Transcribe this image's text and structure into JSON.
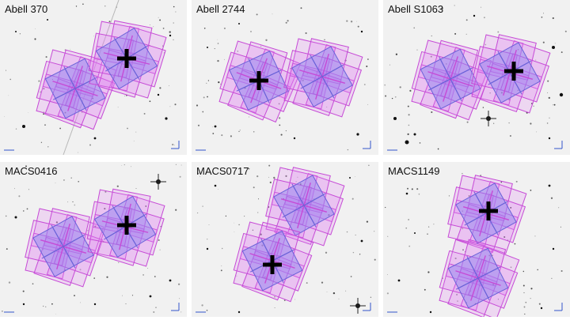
{
  "panels": [
    {
      "title": "Abell 370"
    },
    {
      "title": "Abell 2744"
    },
    {
      "title": "Abell S1063"
    },
    {
      "title": "MACS0416"
    },
    {
      "title": "MACS0717"
    },
    {
      "title": "MACS1149"
    }
  ],
  "colors": {
    "sky": "#f1f1f1",
    "footprint_fill": "#e07af0",
    "footprint_stroke": "#c64ad6",
    "inner_fill": "#8a8af0",
    "inner_stroke": "#6a62d8",
    "cross": "#000000",
    "star": "#111111"
  },
  "icons": [
    "black-cross-marker-icon",
    "compass-arrows-icon",
    "scale-bar-icon"
  ]
}
